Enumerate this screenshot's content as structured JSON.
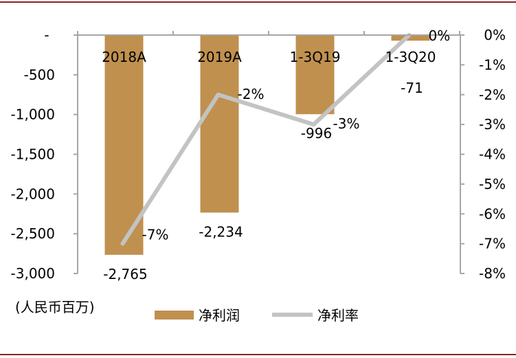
{
  "chart_data": {
    "type": "bar+line",
    "categories": [
      "2018A",
      "2019A",
      "1-3Q19",
      "1-3Q20"
    ],
    "series": [
      {
        "name": "净利润",
        "type": "bar",
        "axis": "left",
        "values": [
          -2765,
          -2234,
          -996,
          -71
        ],
        "labels": [
          "-2,765",
          "-2,234",
          "-996",
          "-71"
        ]
      },
      {
        "name": "净利率",
        "type": "line",
        "axis": "right",
        "values": [
          -7,
          -2,
          -3,
          0
        ],
        "labels": [
          "-7%",
          "-2%",
          "-3%",
          "0%"
        ]
      }
    ],
    "ylim_left": [
      -3000,
      0
    ],
    "ylim_right": [
      -8,
      0
    ],
    "left_ticks": [
      "-",
      "-500",
      "-1,000",
      "-1,500",
      "-2,000",
      "-2,500",
      "-3,000"
    ],
    "right_ticks": [
      "0%",
      "-1%",
      "-2%",
      "-3%",
      "-4%",
      "-5%",
      "-6%",
      "-7%",
      "-8%"
    ],
    "unit_label": "(人民币百万)",
    "legend": {
      "bar": "净利润",
      "line": "净利率",
      "position": "bottom"
    },
    "grid": false
  },
  "colors": {
    "bar": "#C0904F",
    "line": "#C3C3C3",
    "axis": "#A6A6A6",
    "frame": "#8B2323"
  }
}
